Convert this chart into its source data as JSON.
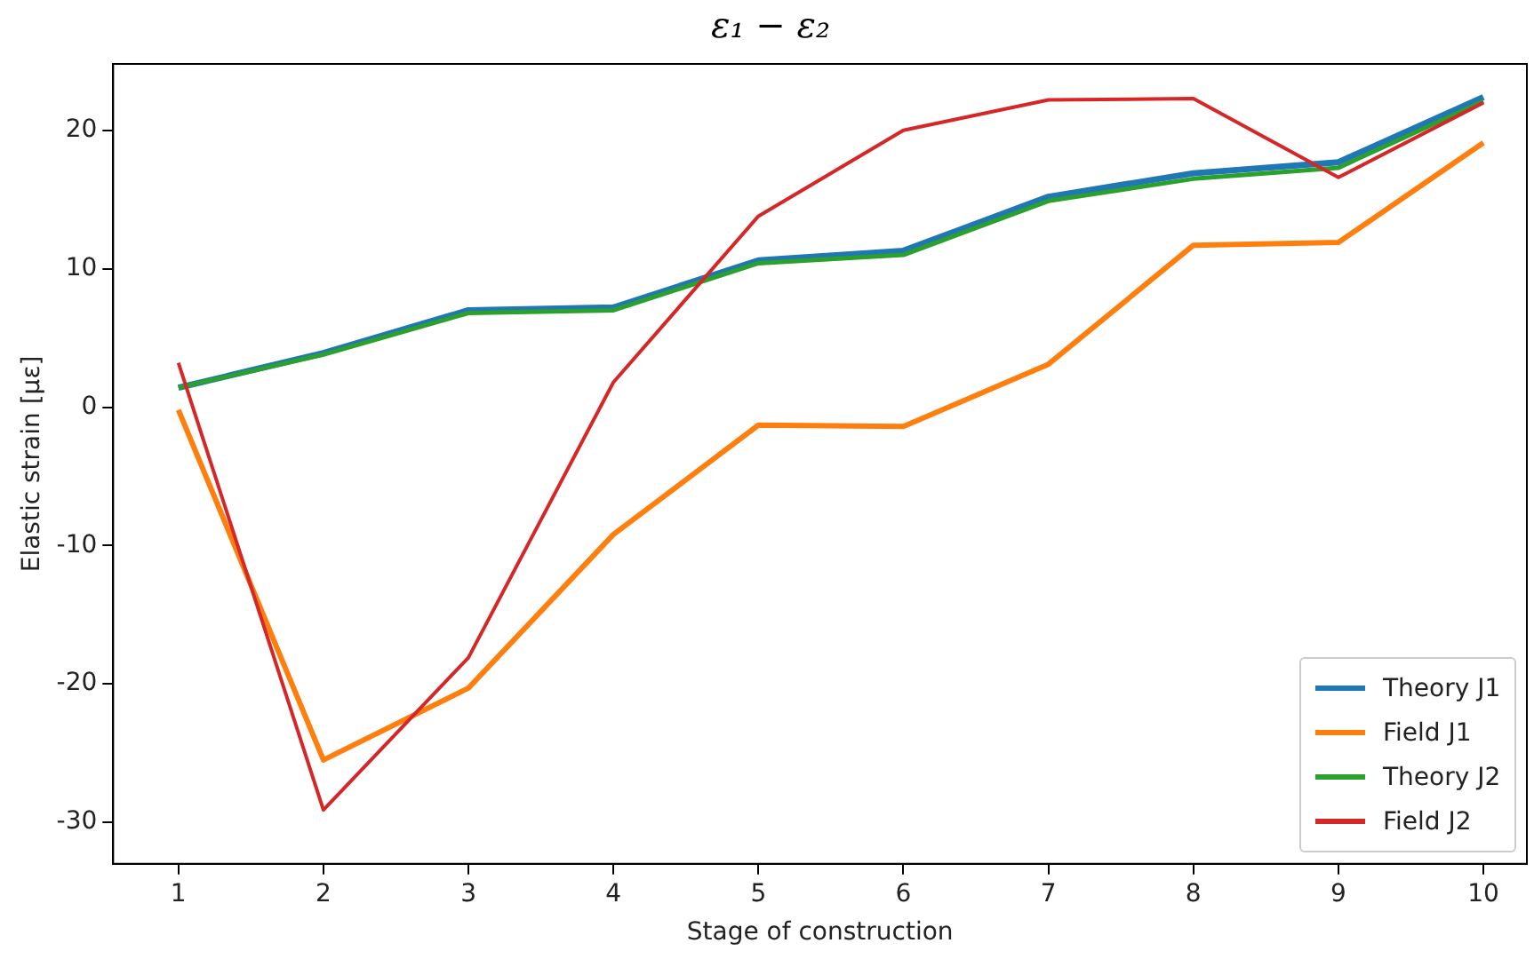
{
  "chart_data": {
    "type": "line",
    "title": "ε₁ − ε₂",
    "xlabel": "Stage of construction",
    "ylabel": "Elastic strain [με]",
    "x": [
      1,
      2,
      3,
      4,
      5,
      6,
      7,
      8,
      9,
      10
    ],
    "xlim": [
      0.55,
      10.3
    ],
    "xticks": [
      1,
      2,
      3,
      4,
      5,
      6,
      7,
      8,
      9,
      10
    ],
    "ylim": [
      -33,
      24.8
    ],
    "yticks": [
      -30,
      -20,
      -10,
      0,
      10,
      20
    ],
    "grid": false,
    "legend": "bottom right",
    "marker": "none",
    "line_style": "solid",
    "series": [
      {
        "name": "Theory J1",
        "color": "#1f77b4",
        "values": [
          1.4,
          3.9,
          7.0,
          7.2,
          10.6,
          11.3,
          15.2,
          16.9,
          17.7,
          22.4
        ]
      },
      {
        "name": "Field J1",
        "color": "#ff7f0e",
        "values": [
          -0.2,
          -25.5,
          -20.3,
          -9.2,
          -1.3,
          -1.4,
          3.1,
          11.7,
          11.9,
          19.1
        ]
      },
      {
        "name": "Theory J2",
        "color": "#2ca02c",
        "values": [
          1.4,
          3.8,
          6.8,
          7.0,
          10.4,
          11.0,
          14.9,
          16.5,
          17.3,
          22.1
        ]
      },
      {
        "name": "Field J2",
        "color": "#d62728",
        "values": [
          3.2,
          -29.1,
          -18.1,
          1.8,
          13.8,
          20.0,
          22.2,
          22.3,
          16.6,
          22.0
        ]
      }
    ]
  }
}
